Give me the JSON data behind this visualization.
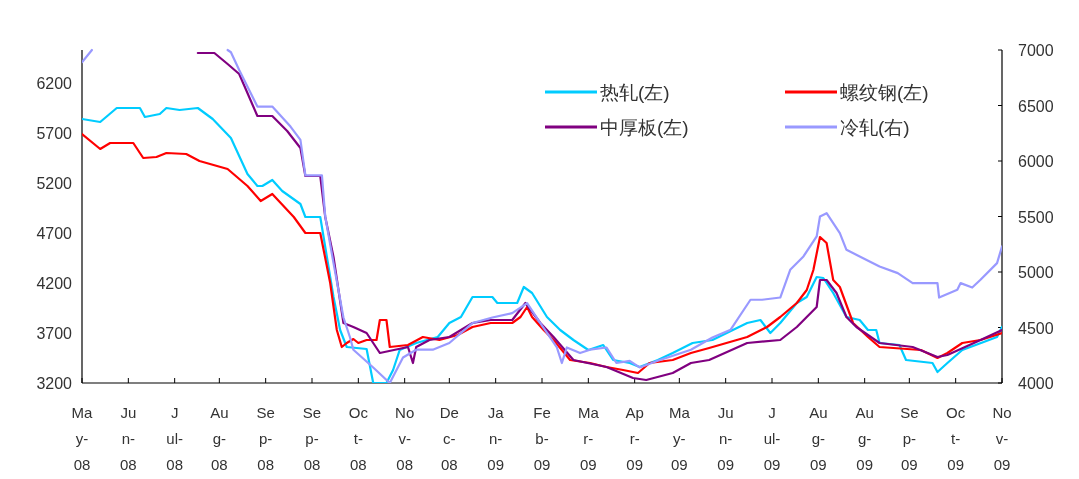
{
  "chart_data": {
    "type": "line",
    "legend": "top right",
    "xlim": [
      "2008-05-13",
      "2009-11-20"
    ],
    "xticks": [
      {
        "value": "2008-05-13",
        "label": "Ma\ny-\n08"
      },
      {
        "value": "2008-06-10",
        "label": "Ju\nn-\n08"
      },
      {
        "value": "2008-07-08",
        "label": "J\nul-\n08"
      },
      {
        "value": "2008-08-04",
        "label": "Au\ng-\n08"
      },
      {
        "value": "2008-09-01",
        "label": "Se\np-\n08"
      },
      {
        "value": "2008-09-29",
        "label": "Se\np-\n08"
      },
      {
        "value": "2008-10-27",
        "label": "Oc\nt-\n08"
      },
      {
        "value": "2008-11-24",
        "label": "No\nv-\n08"
      },
      {
        "value": "2008-12-21",
        "label": "De\nc-\n08"
      },
      {
        "value": "2009-01-18",
        "label": "Ja\nn-\n09"
      },
      {
        "value": "2009-02-15",
        "label": "Fe\nb-\n09"
      },
      {
        "value": "2009-03-15",
        "label": "Ma\nr-\n09"
      },
      {
        "value": "2009-04-12",
        "label": "Ap\nr-\n09"
      },
      {
        "value": "2009-05-09",
        "label": "Ma\ny-\n09"
      },
      {
        "value": "2009-06-06",
        "label": "Ju\nn-\n09"
      },
      {
        "value": "2009-07-04",
        "label": "J\nul-\n09"
      },
      {
        "value": "2009-08-01",
        "label": "Au\ng-\n09"
      },
      {
        "value": "2009-08-29",
        "label": "Au\ng-\n09"
      },
      {
        "value": "2009-09-25",
        "label": "Se\np-\n09"
      },
      {
        "value": "2009-10-23",
        "label": "Oc\nt-\n09"
      },
      {
        "value": "2009-11-20",
        "label": "No\nv-\n09"
      }
    ],
    "ylim": [
      3200,
      6530
    ],
    "yticks": [
      3200,
      3700,
      4200,
      4700,
      5200,
      5700,
      6200
    ],
    "y2lim": [
      4000,
      7000
    ],
    "y2ticks": [
      4000,
      4500,
      5000,
      5500,
      6000,
      6500,
      7000
    ],
    "series": [
      {
        "name": "热轧(左)",
        "color": "#00ccff",
        "x": [
          "2008-05-13",
          "2008-05-24",
          "2008-06-03",
          "2008-06-17",
          "2008-06-20",
          "2008-06-29",
          "2008-07-03",
          "2008-07-11",
          "2008-07-22",
          "2008-07-31",
          "2008-08-11",
          "2008-08-16",
          "2008-08-21",
          "2008-08-27",
          "2008-08-30",
          "2008-09-05",
          "2008-09-11",
          "2008-09-22",
          "2008-09-25",
          "2008-10-04",
          "2008-10-07",
          "2008-10-12",
          "2008-10-16",
          "2008-10-20",
          "2008-11-01",
          "2008-11-05",
          "2008-11-13",
          "2008-11-17",
          "2008-11-21",
          "2008-12-01",
          "2008-12-14",
          "2008-12-21",
          "2008-12-28",
          "2009-01-04",
          "2009-01-16",
          "2009-01-19",
          "2009-01-31",
          "2009-02-04",
          "2009-02-09",
          "2009-02-18",
          "2009-02-26",
          "2009-03-06",
          "2009-03-15",
          "2009-03-24",
          "2009-03-30",
          "2009-04-09",
          "2009-04-15",
          "2009-04-26",
          "2009-05-05",
          "2009-05-17",
          "2009-05-29",
          "2009-06-19",
          "2009-06-27",
          "2009-07-03",
          "2009-07-09",
          "2009-07-19",
          "2009-07-25",
          "2009-07-31",
          "2009-08-04",
          "2009-08-10",
          "2009-08-18",
          "2009-08-26",
          "2009-08-31",
          "2009-09-05",
          "2009-09-07",
          "2009-09-19",
          "2009-09-23",
          "2009-10-09",
          "2009-10-12",
          "2009-10-18",
          "2009-10-27",
          "2009-11-17",
          "2009-11-20"
        ],
        "values": [
          5840,
          5810,
          5950,
          5950,
          5860,
          5890,
          5950,
          5930,
          5950,
          5840,
          5650,
          5470,
          5290,
          5170,
          5170,
          5230,
          5120,
          4990,
          4860,
          4860,
          4560,
          4060,
          3730,
          3560,
          3540,
          3200,
          3200,
          3330,
          3530,
          3600,
          3660,
          3800,
          3860,
          4060,
          4060,
          4000,
          4000,
          4160,
          4100,
          3860,
          3730,
          3630,
          3530,
          3580,
          3430,
          3400,
          3360,
          3430,
          3500,
          3600,
          3630,
          3800,
          3830,
          3700,
          3800,
          4000,
          4060,
          4260,
          4250,
          4100,
          3860,
          3830,
          3730,
          3730,
          3600,
          3580,
          3430,
          3400,
          3310,
          3400,
          3530,
          3660,
          3760
        ]
      },
      {
        "name": "螺纹钢(左)",
        "color": "#ff0000",
        "x": [
          "2008-05-13",
          "2008-05-24",
          "2008-05-30",
          "2008-06-13",
          "2008-06-19",
          "2008-06-27",
          "2008-07-03",
          "2008-07-15",
          "2008-07-23",
          "2008-08-09",
          "2008-08-21",
          "2008-08-29",
          "2008-09-05",
          "2008-09-18",
          "2008-09-25",
          "2008-10-04",
          "2008-10-10",
          "2008-10-14",
          "2008-10-17",
          "2008-10-20",
          "2008-10-24",
          "2008-10-27",
          "2008-11-01",
          "2008-11-07",
          "2008-11-09",
          "2008-11-13",
          "2008-11-15",
          "2008-11-26",
          "2008-12-05",
          "2008-12-15",
          "2008-12-26",
          "2009-01-04",
          "2009-01-15",
          "2009-01-28",
          "2009-02-02",
          "2009-02-06",
          "2009-02-09",
          "2009-02-16",
          "2009-02-22",
          "2009-03-04",
          "2009-03-16",
          "2009-03-26",
          "2009-04-05",
          "2009-04-14",
          "2009-04-21",
          "2009-05-05",
          "2009-05-16",
          "2009-05-27",
          "2009-06-19",
          "2009-07-01",
          "2009-07-09",
          "2009-07-19",
          "2009-07-25",
          "2009-07-29",
          "2009-08-02",
          "2009-08-06",
          "2009-08-10",
          "2009-08-14",
          "2009-08-22",
          "2009-08-31",
          "2009-09-07",
          "2009-10-02",
          "2009-10-12",
          "2009-10-18",
          "2009-10-27",
          "2009-11-07",
          "2009-11-20"
        ],
        "values": [
          5690,
          5540,
          5600,
          5600,
          5450,
          5460,
          5500,
          5490,
          5420,
          5340,
          5170,
          5020,
          5090,
          4860,
          4700,
          4700,
          4200,
          3730,
          3560,
          3600,
          3640,
          3600,
          3630,
          3630,
          3830,
          3830,
          3560,
          3580,
          3660,
          3630,
          3680,
          3760,
          3800,
          3800,
          3860,
          3960,
          3860,
          3730,
          3630,
          3430,
          3400,
          3360,
          3330,
          3300,
          3400,
          3430,
          3500,
          3550,
          3660,
          3760,
          3860,
          4000,
          4130,
          4330,
          4660,
          4600,
          4230,
          4160,
          3800,
          3660,
          3560,
          3530,
          3450,
          3500,
          3600,
          3630,
          3700
        ]
      },
      {
        "name": "中厚板(左)",
        "color": "#800080",
        "x": [
          "2008-07-22",
          "2008-08-01",
          "2008-08-09",
          "2008-08-16",
          "2008-08-27",
          "2008-09-05",
          "2008-09-14",
          "2008-09-22",
          "2008-09-25",
          "2008-10-04",
          "2008-10-07",
          "2008-10-12",
          "2008-10-18",
          "2008-10-24",
          "2008-11-01",
          "2008-11-09",
          "2008-11-26",
          "2008-11-29",
          "2008-12-01",
          "2008-12-09",
          "2008-12-21",
          "2009-01-04",
          "2009-01-15",
          "2009-01-28",
          "2009-02-05",
          "2009-02-14",
          "2009-02-22",
          "2009-03-06",
          "2009-03-26",
          "2009-04-11",
          "2009-04-19",
          "2009-05-05",
          "2009-05-16",
          "2009-05-27",
          "2009-06-19",
          "2009-07-09",
          "2009-07-19",
          "2009-07-31",
          "2009-08-02",
          "2009-08-06",
          "2009-08-12",
          "2009-08-18",
          "2009-08-24",
          "2009-09-07",
          "2009-09-27",
          "2009-10-12",
          "2009-10-18",
          "2009-11-07",
          "2009-11-20"
        ],
        "values": [
          6500,
          6500,
          6390,
          6290,
          5870,
          5870,
          5720,
          5550,
          5270,
          5270,
          4860,
          4460,
          3800,
          3760,
          3700,
          3500,
          3560,
          3400,
          3560,
          3630,
          3660,
          3800,
          3830,
          3830,
          4000,
          3800,
          3660,
          3430,
          3360,
          3250,
          3230,
          3300,
          3400,
          3430,
          3600,
          3630,
          3760,
          3960,
          4230,
          4230,
          4100,
          3860,
          3760,
          3600,
          3560,
          3460,
          3480,
          3630,
          3730
        ]
      },
      {
        "name": "冷轧(右)",
        "color": "#9999ff",
        "axis": "y2",
        "x": [
          "2008-05-13",
          "2008-05-19",
          "2008-05-21",
          "2008-08-09",
          "2008-08-11",
          "2008-08-16",
          "2008-08-27",
          "2008-09-05",
          "2008-09-16",
          "2008-09-22",
          "2008-09-25",
          "2008-10-05",
          "2008-10-07",
          "2008-10-12",
          "2008-10-18",
          "2008-10-22",
          "2008-10-24",
          "2008-11-05",
          "2008-11-15",
          "2008-11-23",
          "2008-12-01",
          "2008-12-11",
          "2008-12-21",
          "2009-01-04",
          "2009-01-16",
          "2009-01-28",
          "2009-02-06",
          "2009-02-14",
          "2009-02-24",
          "2009-02-27",
          "2009-03-02",
          "2009-03-10",
          "2009-03-16",
          "2009-03-26",
          "2009-04-01",
          "2009-04-09",
          "2009-04-15",
          "2009-04-26",
          "2009-05-16",
          "2009-05-29",
          "2009-06-09",
          "2009-06-21",
          "2009-06-28",
          "2009-07-09",
          "2009-07-15",
          "2009-07-23",
          "2009-07-31",
          "2009-08-02",
          "2009-08-06",
          "2009-08-10",
          "2009-08-14",
          "2009-08-18",
          "2009-08-26",
          "2009-09-07",
          "2009-09-18",
          "2009-09-27",
          "2009-10-12",
          "2009-10-13",
          "2009-10-24",
          "2009-10-26",
          "2009-11-02",
          "2009-11-07",
          "2009-11-17",
          "2009-11-20"
        ],
        "values": [
          6890,
          7000,
          null,
          7000,
          6980,
          6820,
          6490,
          6490,
          6310,
          6190,
          5870,
          5870,
          5500,
          5080,
          4590,
          4410,
          4300,
          4140,
          4000,
          4230,
          4300,
          4300,
          4360,
          4540,
          4590,
          4630,
          4720,
          4540,
          4320,
          4180,
          4320,
          4270,
          4300,
          4320,
          4180,
          4200,
          4140,
          4200,
          4300,
          4410,
          4480,
          4750,
          4750,
          4770,
          5020,
          5140,
          5320,
          5500,
          5530,
          5440,
          5350,
          5200,
          5140,
          5050,
          4990,
          4900,
          4900,
          4770,
          4840,
          4900,
          4860,
          4930,
          5080,
          5230
        ]
      }
    ]
  }
}
